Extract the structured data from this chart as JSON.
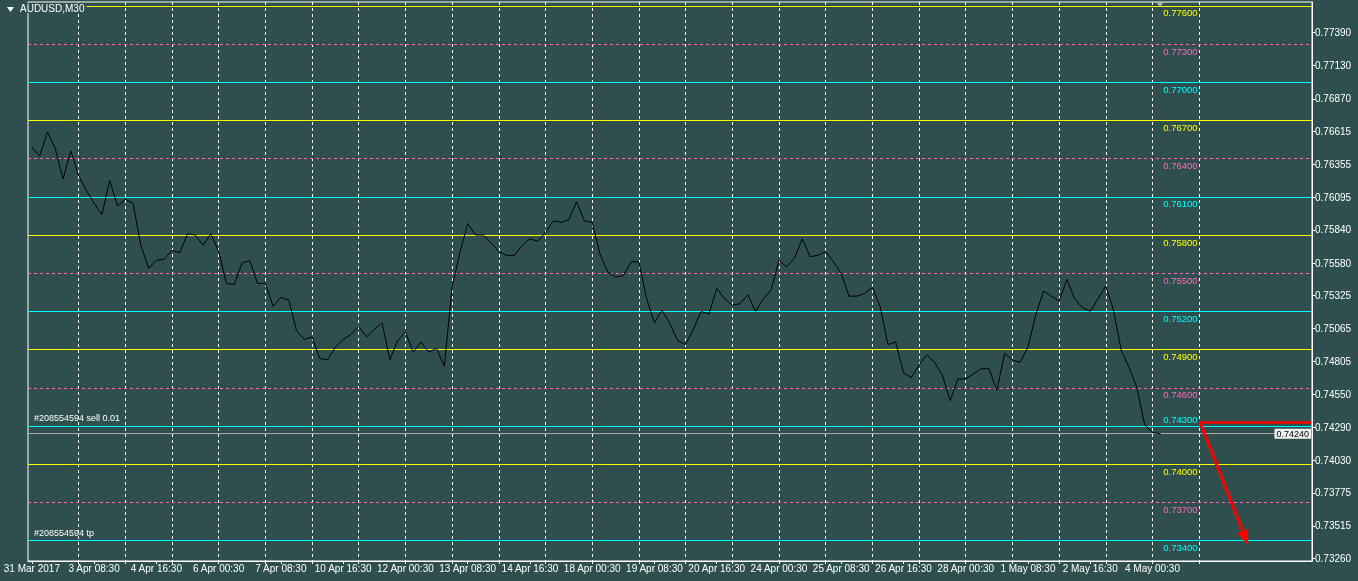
{
  "chart_data": {
    "type": "line",
    "title": "AUDUSD,M30",
    "color": "#000000",
    "grid": "x",
    "categories": [
      "31 Mar 2017",
      null,
      null,
      null,
      null,
      null,
      null,
      null,
      "3 Apr 08:30",
      null,
      null,
      null,
      null,
      null,
      null,
      null,
      "4 Apr 16:30",
      null,
      null,
      null,
      null,
      null,
      null,
      null,
      "6 Apr 00:30",
      null,
      null,
      null,
      null,
      null,
      null,
      null,
      "7 Apr 08:30",
      null,
      null,
      null,
      null,
      null,
      null,
      null,
      "10 Apr 16:30",
      null,
      null,
      null,
      null,
      null,
      null,
      null,
      "12 Apr 00:30",
      null,
      null,
      null,
      null,
      null,
      null,
      null,
      "13 Apr 08:30",
      null,
      null,
      null,
      null,
      null,
      null,
      null,
      "14 Apr 16:30",
      null,
      null,
      null,
      null,
      null,
      null,
      null,
      "18 Apr 00:30",
      null,
      null,
      null,
      null,
      null,
      null,
      null,
      "19 Apr 08:30",
      null,
      null,
      null,
      null,
      null,
      null,
      null,
      "20 Apr 16:30",
      null,
      null,
      null,
      null,
      null,
      null,
      null,
      "24 Apr 00:30",
      null,
      null,
      null,
      null,
      null,
      null,
      null,
      "25 Apr 08:30",
      null,
      null,
      null,
      null,
      null,
      null,
      null,
      "26 Apr 16:30",
      null,
      null,
      null,
      null,
      null,
      null,
      null,
      "28 Apr 00:30",
      null,
      null,
      null,
      null,
      null,
      null,
      null,
      "1 May 08:30",
      null,
      null,
      null,
      null,
      null,
      null,
      null,
      "2 May 16:30",
      null,
      null,
      null,
      null,
      null,
      null,
      null,
      "4 May 00:30",
      null,
      null,
      null,
      null,
      null,
      null,
      null,
      null,
      null,
      null,
      null,
      null,
      null,
      null,
      null,
      null,
      null,
      null,
      null,
      null
    ],
    "values": [
      0.7649,
      0.7642,
      0.7661,
      0.7648,
      0.7624,
      0.7646,
      0.7627,
      0.7615,
      0.7605,
      0.7596,
      0.7623,
      0.7603,
      0.7608,
      0.7605,
      0.7572,
      0.7554,
      0.756,
      0.7561,
      0.7568,
      0.7566,
      0.7581,
      0.758,
      0.7572,
      0.7581,
      0.7567,
      0.7542,
      0.7541,
      0.7558,
      0.756,
      0.7542,
      0.7542,
      0.7524,
      0.7531,
      0.7529,
      0.7505,
      0.7498,
      0.75,
      0.7483,
      0.7482,
      0.7492,
      0.7498,
      0.7502,
      0.7508,
      0.75,
      0.7506,
      0.7511,
      0.7482,
      0.7497,
      0.7504,
      0.7488,
      0.7496,
      0.7488,
      0.7491,
      0.7477,
      0.7539,
      0.7566,
      0.7589,
      0.758,
      0.758,
      0.7574,
      0.7567,
      0.7564,
      0.7564,
      0.7572,
      0.7577,
      0.7575,
      0.7582,
      0.7591,
      0.759,
      0.7592,
      0.7606,
      0.7591,
      0.759,
      0.7565,
      0.7551,
      0.7547,
      0.7548,
      0.7559,
      0.7559,
      0.753,
      0.7511,
      0.7521,
      0.751,
      0.7497,
      0.7494,
      0.7506,
      0.752,
      0.7518,
      0.7538,
      0.753,
      0.7525,
      0.7526,
      0.7533,
      0.752,
      0.753,
      0.7537,
      0.756,
      0.7555,
      0.7562,
      0.7577,
      0.7563,
      0.7564,
      0.7567,
      0.7559,
      0.755,
      0.7532,
      0.7532,
      0.7534,
      0.7539,
      0.7524,
      0.7494,
      0.7496,
      0.7472,
      0.7468,
      0.7478,
      0.7486,
      0.748,
      0.747,
      0.745,
      0.7467,
      0.7467,
      0.7471,
      0.7475,
      0.7475,
      0.7458,
      0.7487,
      0.7482,
      0.748,
      0.7492,
      0.7517,
      0.7536,
      0.7532,
      0.7528,
      0.7545,
      0.753,
      0.7523,
      0.752,
      0.753,
      0.754,
      0.7521,
      0.7489,
      0.7476,
      0.746,
      0.7431,
      0.7425,
      0.7424,
      null,
      null,
      null,
      null,
      null,
      null,
      null,
      null,
      null,
      null,
      null,
      null,
      null,
      null,
      null,
      null,
      null,
      null,
      null
    ],
    "ylim": [
      0.7324,
      0.7763
    ],
    "yticks": [
      {
        "value": 0.7739,
        "label": "0.77390"
      },
      {
        "value": 0.7713,
        "label": "0.77130"
      },
      {
        "value": 0.7687,
        "label": "0.76870"
      },
      0.76615,
      0.76355,
      0.76095,
      {
        "value": 0.7584,
        "label": "0.75840"
      },
      {
        "value": 0.7558,
        "label": "0.75580"
      },
      0.75325,
      0.75065,
      0.74805,
      {
        "value": 0.7455,
        "label": "0.74550"
      },
      {
        "value": 0.7429,
        "label": "0.74290"
      },
      {
        "value": 0.7403,
        "label": "0.74030"
      },
      0.73775,
      0.73515,
      {
        "value": 0.7326,
        "label": "0.73260"
      }
    ],
    "ref_lines": [
      {
        "axis": "y",
        "value": 0.776,
        "label": "0.77600",
        "color": "#ffff00",
        "line_style": "solid"
      },
      {
        "axis": "y",
        "value": 0.773,
        "label": "0.77300",
        "color": "#ff69b4",
        "line_style": "dashed"
      },
      {
        "axis": "y",
        "value": 0.77,
        "label": "0.77000",
        "color": "#00ffff",
        "line_style": "solid"
      },
      {
        "axis": "y",
        "value": 0.767,
        "label": "0.76700",
        "color": "#ffff00",
        "line_style": "solid"
      },
      {
        "axis": "y",
        "value": 0.764,
        "label": "0.76400",
        "color": "#ff69b4",
        "line_style": "dashed"
      },
      {
        "axis": "y",
        "value": 0.761,
        "label": "0.76100",
        "color": "#00ffff",
        "line_style": "solid"
      },
      {
        "axis": "y",
        "value": 0.758,
        "label": "0.75800",
        "color": "#ffff00",
        "line_style": "solid"
      },
      {
        "axis": "y",
        "value": 0.755,
        "label": "0.75500",
        "color": "#ff69b4",
        "line_style": "dashed"
      },
      {
        "axis": "y",
        "value": 0.752,
        "label": "0.75200",
        "color": "#00ffff",
        "line_style": "solid"
      },
      {
        "axis": "y",
        "value": 0.749,
        "label": "0.74900",
        "color": "#ffff00",
        "line_style": "solid"
      },
      {
        "axis": "y",
        "value": 0.746,
        "label": "0.74600",
        "color": "#ff69b4",
        "line_style": "dashed"
      },
      {
        "axis": "y",
        "value": 0.743,
        "label": "0.74300",
        "color": "#00ffff",
        "line_style": "solid"
      },
      {
        "axis": "y",
        "value": 0.74,
        "label": "0.74000",
        "color": "#ffff00",
        "line_style": "solid"
      },
      {
        "axis": "y",
        "value": 0.737,
        "label": "0.73700",
        "color": "#ff69b4",
        "line_style": "dashed"
      },
      {
        "axis": "y",
        "value": 0.734,
        "label": "0.73400",
        "color": "#00ffff",
        "line_style": "solid"
      },
      {
        "axis": "y",
        "value": 0.7424,
        "color": "#a9a9a9",
        "line_style": "solid"
      }
    ],
    "annotations": [
      "#208554594 sell 0.01",
      "#208554594 tp",
      {
        "text": "0.74240",
        "y": 0.7424
      }
    ]
  }
}
